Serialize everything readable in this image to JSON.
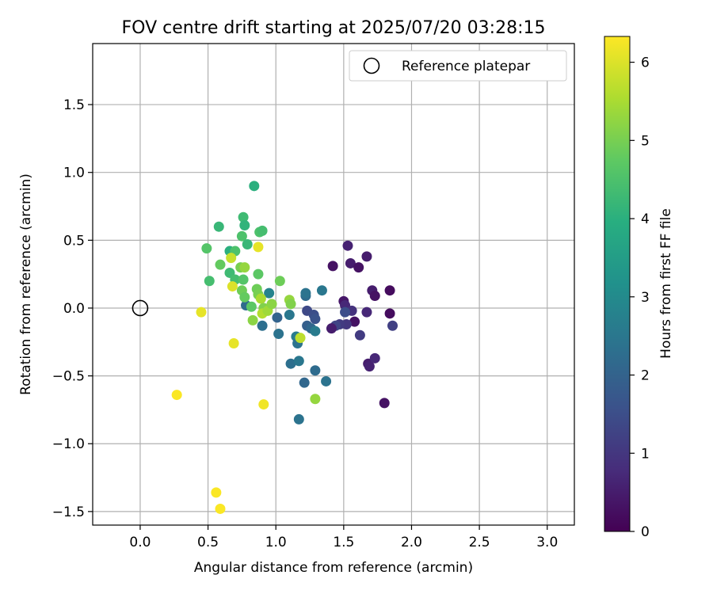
{
  "chart_data": {
    "type": "scatter",
    "title": "FOV centre drift starting at 2025/07/20 03:28:15",
    "xlabel": "Angular distance from reference (arcmin)",
    "ylabel": "Rotation from reference (arcmin)",
    "xlim": [
      -0.35,
      3.2
    ],
    "ylim": [
      -1.6,
      1.95
    ],
    "xticks": [
      "0.0",
      "0.5",
      "1.0",
      "1.5",
      "2.0",
      "2.5",
      "3.0"
    ],
    "yticks": [
      "−1.5",
      "−1.0",
      "−0.5",
      "0.0",
      "0.5",
      "1.0",
      "1.5"
    ],
    "grid": true,
    "legend": {
      "placement": "top-right",
      "entries": [
        "Reference platepar"
      ]
    },
    "reference_point": {
      "x": 0.0,
      "y": 0.0
    },
    "colorbar": {
      "label": "Hours from first FF file",
      "colormap": "viridis",
      "range": [
        0,
        6.33
      ],
      "ticks": [
        "0",
        "1",
        "2",
        "3",
        "4",
        "5",
        "6"
      ]
    },
    "points": [
      {
        "x": 1.53,
        "y": 0.46,
        "t": 0.6
      },
      {
        "x": 1.55,
        "y": 0.33,
        "t": 0.5
      },
      {
        "x": 1.61,
        "y": 0.3,
        "t": 0.3
      },
      {
        "x": 1.67,
        "y": 0.38,
        "t": 0.5
      },
      {
        "x": 1.42,
        "y": 0.31,
        "t": 0.3
      },
      {
        "x": 1.71,
        "y": 0.13,
        "t": 0.5
      },
      {
        "x": 1.73,
        "y": 0.09,
        "t": 0.3
      },
      {
        "x": 1.84,
        "y": 0.13,
        "t": 0.2
      },
      {
        "x": 1.5,
        "y": 0.05,
        "t": 0.4
      },
      {
        "x": 1.51,
        "y": 0.02,
        "t": 0.7
      },
      {
        "x": 1.56,
        "y": -0.02,
        "t": 0.9
      },
      {
        "x": 1.58,
        "y": -0.1,
        "t": 0.3
      },
      {
        "x": 1.52,
        "y": -0.12,
        "t": 1.0
      },
      {
        "x": 1.47,
        "y": -0.12,
        "t": 1.1
      },
      {
        "x": 1.44,
        "y": -0.13,
        "t": 1.3
      },
      {
        "x": 1.41,
        "y": -0.15,
        "t": 0.5
      },
      {
        "x": 1.62,
        "y": -0.2,
        "t": 1.1
      },
      {
        "x": 1.67,
        "y": -0.03,
        "t": 0.7
      },
      {
        "x": 1.84,
        "y": -0.04,
        "t": 0.2
      },
      {
        "x": 1.86,
        "y": -0.13,
        "t": 1.2
      },
      {
        "x": 1.68,
        "y": -0.41,
        "t": 0.5
      },
      {
        "x": 1.69,
        "y": -0.43,
        "t": 0.6
      },
      {
        "x": 1.73,
        "y": -0.37,
        "t": 0.7
      },
      {
        "x": 1.8,
        "y": -0.7,
        "t": 0.3
      },
      {
        "x": 1.51,
        "y": -0.03,
        "t": 1.5
      },
      {
        "x": 1.23,
        "y": -0.02,
        "t": 1.4
      },
      {
        "x": 1.28,
        "y": -0.05,
        "t": 1.5
      },
      {
        "x": 1.29,
        "y": -0.08,
        "t": 1.6
      },
      {
        "x": 1.22,
        "y": 0.09,
        "t": 2.2
      },
      {
        "x": 1.22,
        "y": 0.11,
        "t": 2.4
      },
      {
        "x": 1.34,
        "y": 0.13,
        "t": 2.5
      },
      {
        "x": 1.23,
        "y": -0.13,
        "t": 1.9
      },
      {
        "x": 1.26,
        "y": -0.15,
        "t": 2.1
      },
      {
        "x": 1.29,
        "y": -0.17,
        "t": 2.6
      },
      {
        "x": 1.15,
        "y": -0.21,
        "t": 2.6
      },
      {
        "x": 1.16,
        "y": -0.26,
        "t": 2.4
      },
      {
        "x": 1.1,
        "y": -0.05,
        "t": 2.5
      },
      {
        "x": 1.01,
        "y": -0.07,
        "t": 2.0
      },
      {
        "x": 0.95,
        "y": 0.11,
        "t": 2.8
      },
      {
        "x": 1.02,
        "y": -0.19,
        "t": 2.4
      },
      {
        "x": 1.11,
        "y": -0.41,
        "t": 2.3
      },
      {
        "x": 1.17,
        "y": -0.39,
        "t": 2.5
      },
      {
        "x": 1.29,
        "y": -0.46,
        "t": 2.2
      },
      {
        "x": 1.21,
        "y": -0.55,
        "t": 2.1
      },
      {
        "x": 1.37,
        "y": -0.54,
        "t": 2.4
      },
      {
        "x": 1.17,
        "y": -0.82,
        "t": 2.4
      },
      {
        "x": 0.9,
        "y": -0.13,
        "t": 2.3
      },
      {
        "x": 0.78,
        "y": 0.02,
        "t": 2.2
      },
      {
        "x": 0.84,
        "y": 0.9,
        "t": 4.0
      },
      {
        "x": 0.76,
        "y": 0.67,
        "t": 4.3
      },
      {
        "x": 0.77,
        "y": 0.61,
        "t": 4.1
      },
      {
        "x": 0.88,
        "y": 0.56,
        "t": 4.5
      },
      {
        "x": 0.9,
        "y": 0.57,
        "t": 4.4
      },
      {
        "x": 0.75,
        "y": 0.53,
        "t": 4.5
      },
      {
        "x": 0.79,
        "y": 0.47,
        "t": 4.2
      },
      {
        "x": 0.58,
        "y": 0.6,
        "t": 4.2
      },
      {
        "x": 0.49,
        "y": 0.44,
        "t": 4.6
      },
      {
        "x": 0.66,
        "y": 0.42,
        "t": 4.0
      },
      {
        "x": 0.7,
        "y": 0.42,
        "t": 4.5
      },
      {
        "x": 0.59,
        "y": 0.32,
        "t": 4.8
      },
      {
        "x": 0.66,
        "y": 0.26,
        "t": 4.3
      },
      {
        "x": 0.7,
        "y": 0.21,
        "t": 4.4
      },
      {
        "x": 0.74,
        "y": 0.3,
        "t": 5.0
      },
      {
        "x": 0.77,
        "y": 0.3,
        "t": 5.3
      },
      {
        "x": 0.76,
        "y": 0.21,
        "t": 4.6
      },
      {
        "x": 0.51,
        "y": 0.2,
        "t": 4.4
      },
      {
        "x": 0.75,
        "y": 0.13,
        "t": 4.9
      },
      {
        "x": 0.77,
        "y": 0.08,
        "t": 4.8
      },
      {
        "x": 0.87,
        "y": 0.25,
        "t": 4.7
      },
      {
        "x": 0.86,
        "y": 0.14,
        "t": 4.9
      },
      {
        "x": 0.87,
        "y": 0.1,
        "t": 5.0
      },
      {
        "x": 0.89,
        "y": 0.07,
        "t": 5.5
      },
      {
        "x": 0.82,
        "y": 0.01,
        "t": 4.7
      },
      {
        "x": 0.91,
        "y": 0.0,
        "t": 5.1
      },
      {
        "x": 0.9,
        "y": -0.04,
        "t": 5.6
      },
      {
        "x": 0.94,
        "y": -0.02,
        "t": 5.4
      },
      {
        "x": 0.97,
        "y": 0.03,
        "t": 5.2
      },
      {
        "x": 1.03,
        "y": 0.2,
        "t": 4.9
      },
      {
        "x": 1.1,
        "y": 0.06,
        "t": 5.3
      },
      {
        "x": 1.11,
        "y": 0.03,
        "t": 5.1
      },
      {
        "x": 0.83,
        "y": -0.09,
        "t": 5.2
      },
      {
        "x": 1.18,
        "y": -0.22,
        "t": 5.7
      },
      {
        "x": 1.29,
        "y": -0.67,
        "t": 5.3
      },
      {
        "x": 0.67,
        "y": 0.37,
        "t": 5.8
      },
      {
        "x": 0.87,
        "y": 0.45,
        "t": 6.1
      },
      {
        "x": 0.68,
        "y": 0.16,
        "t": 6.0
      },
      {
        "x": 0.45,
        "y": -0.03,
        "t": 6.1
      },
      {
        "x": 0.69,
        "y": -0.26,
        "t": 6.1
      },
      {
        "x": 0.91,
        "y": -0.71,
        "t": 6.2
      },
      {
        "x": 0.27,
        "y": -0.64,
        "t": 6.3
      },
      {
        "x": 0.56,
        "y": -1.36,
        "t": 6.3
      },
      {
        "x": 0.59,
        "y": -1.48,
        "t": 6.3
      }
    ]
  }
}
